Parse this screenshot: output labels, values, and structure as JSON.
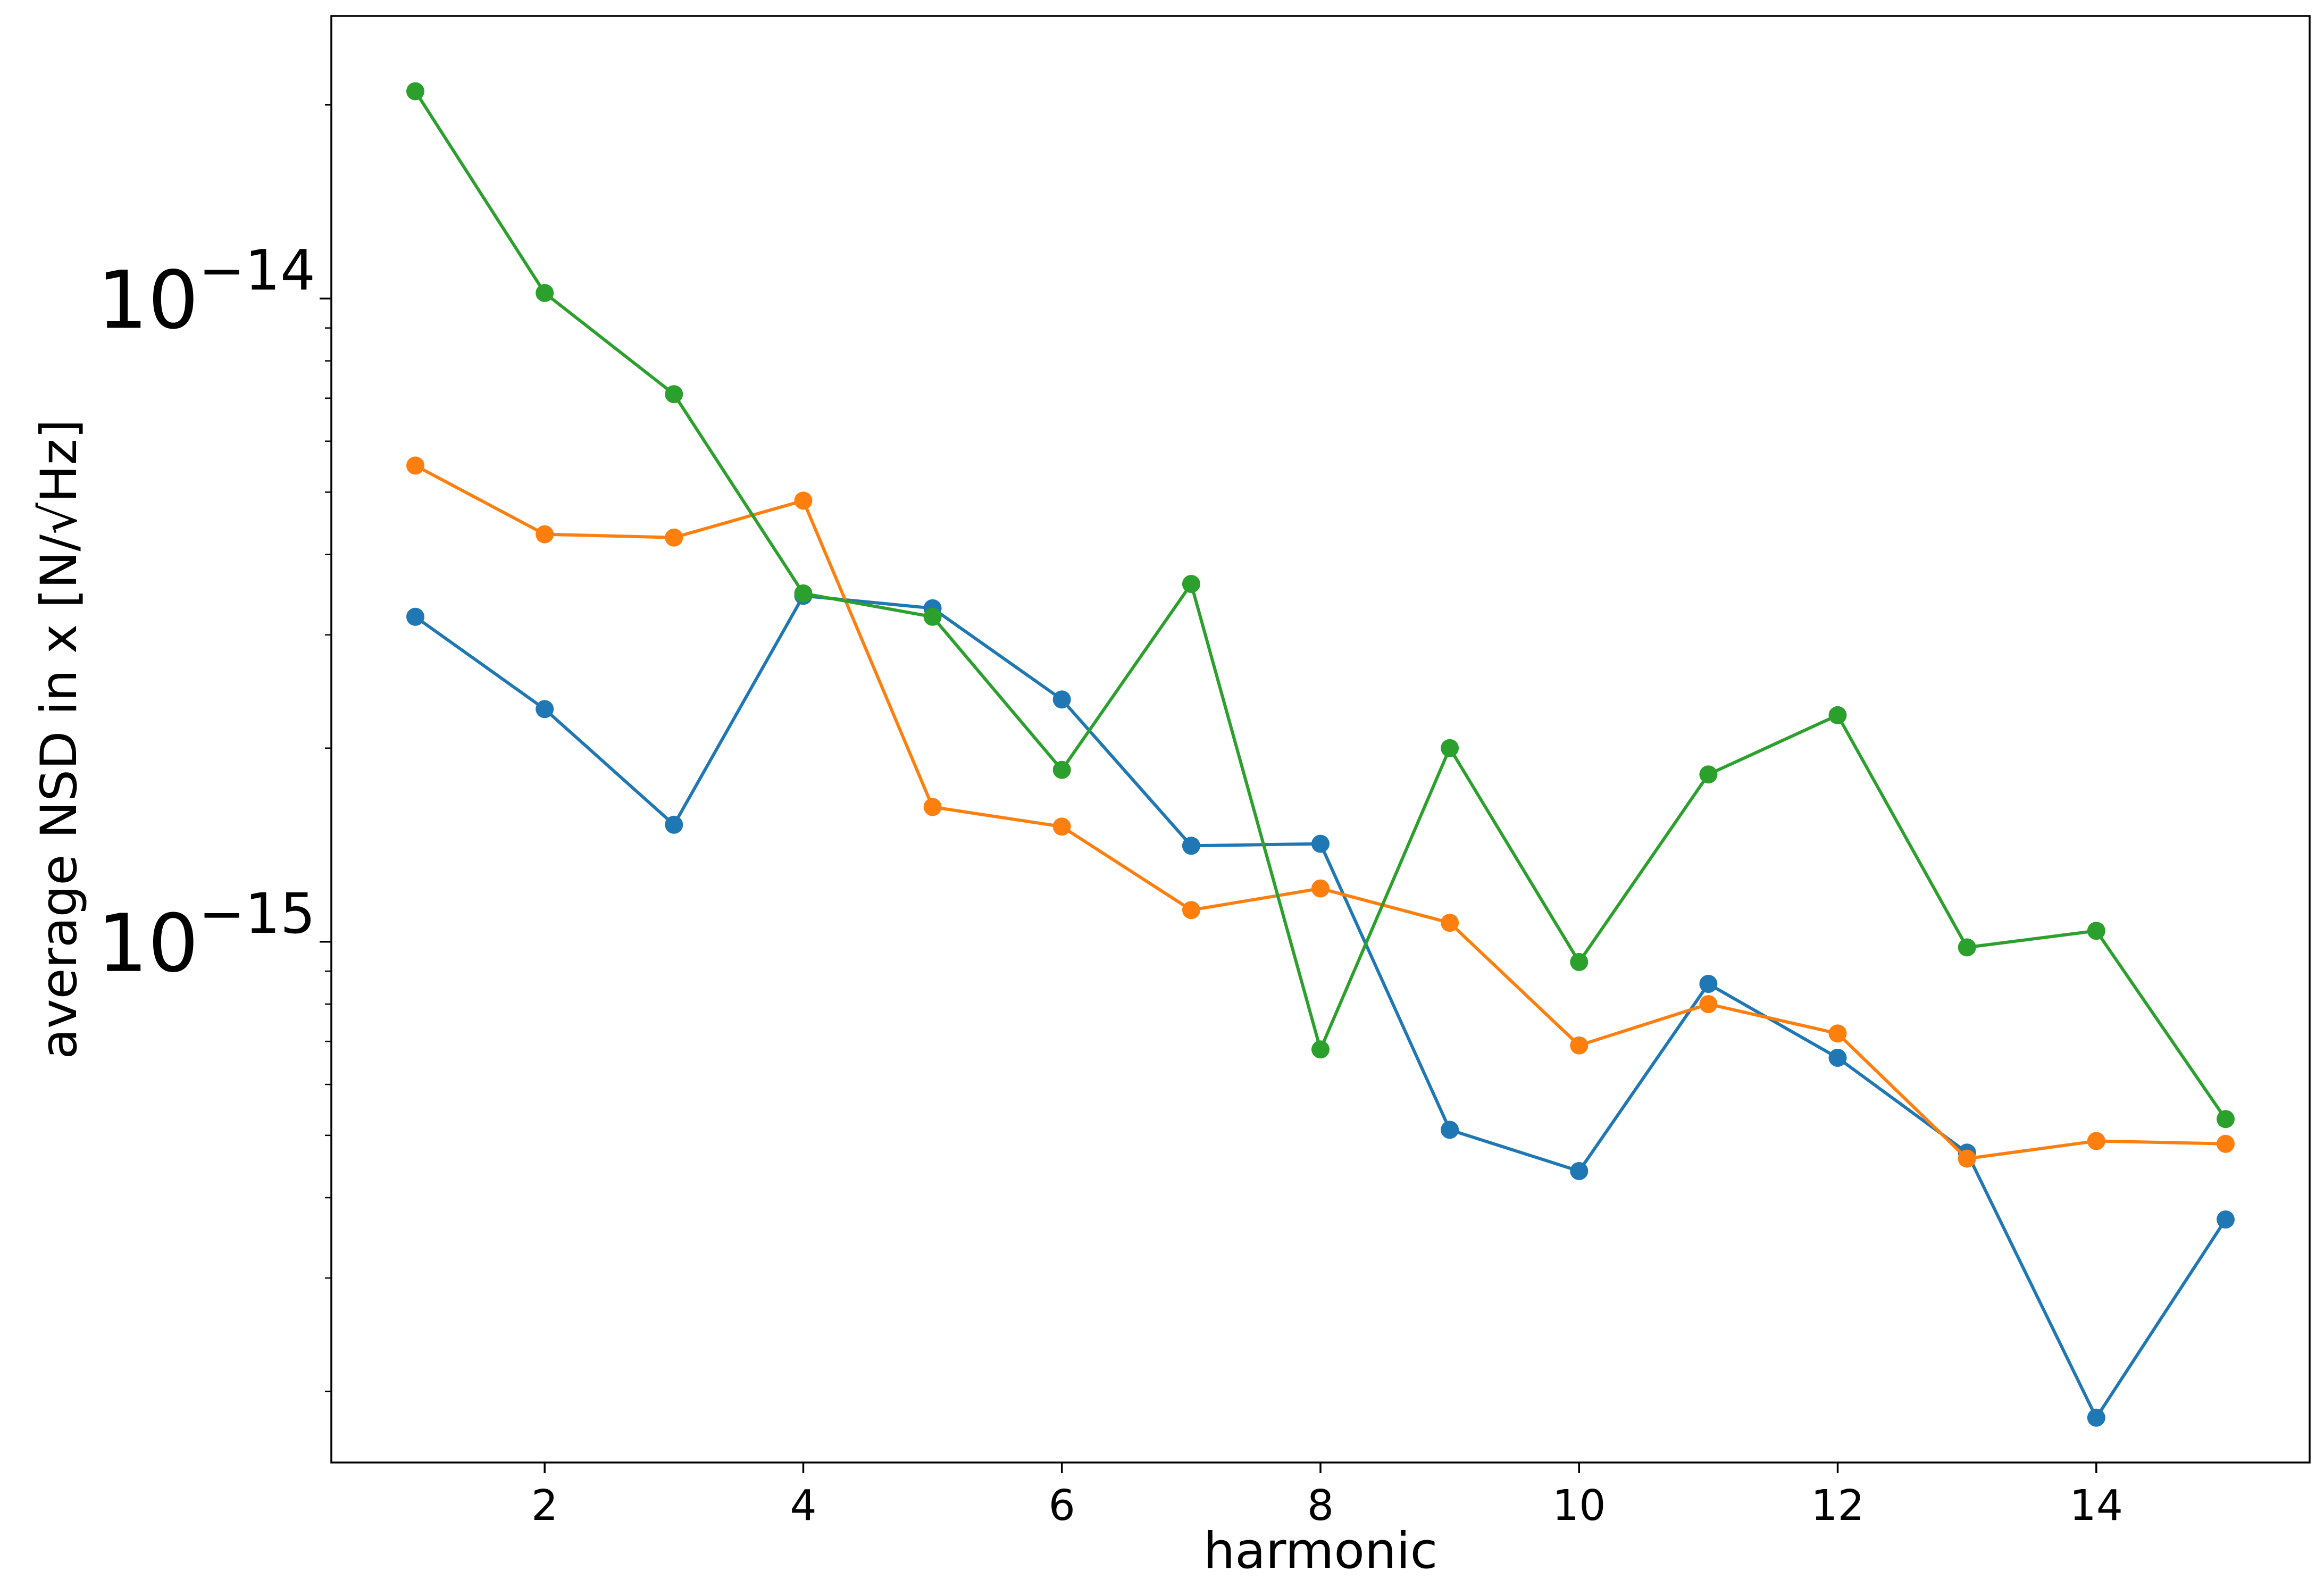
{
  "chart_data": {
    "type": "line",
    "title": "",
    "xlabel": "harmonic",
    "ylabel": "average NSD in x [N/√Hz]",
    "y_scale": "log",
    "xlim": [
      0.35,
      15.65
    ],
    "ylim": [
      1.55e-16,
      2.75e-14
    ],
    "grid": false,
    "legend": "none",
    "x_ticks": [
      2,
      4,
      6,
      8,
      10,
      12,
      14
    ],
    "x_tick_labels": [
      "2",
      "4",
      "6",
      "8",
      "10",
      "12",
      "14"
    ],
    "y_major_ticks": [
      {
        "value": 1e-14,
        "base": "10",
        "exp": "−14"
      },
      {
        "value": 1e-15,
        "base": "10",
        "exp": "−15"
      }
    ],
    "y_minor_ticks": [
      2e-16,
      3e-16,
      4e-16,
      5e-16,
      6e-16,
      7e-16,
      8e-16,
      9e-16,
      2e-15,
      3e-15,
      4e-15,
      5e-15,
      6e-15,
      7e-15,
      8e-15,
      9e-15,
      2e-14
    ],
    "x": [
      1,
      2,
      3,
      4,
      5,
      6,
      7,
      8,
      9,
      10,
      11,
      12,
      13,
      14,
      15
    ],
    "series": [
      {
        "color": "#1f77b4",
        "values": [
          3.2e-15,
          2.3e-15,
          1.52e-15,
          3.45e-15,
          3.3e-15,
          2.38e-15,
          1.41e-15,
          1.42e-15,
          5.1e-16,
          4.4e-16,
          8.6e-16,
          6.6e-16,
          4.7e-16,
          1.82e-16,
          3.7e-16
        ]
      },
      {
        "color": "#ff7f0e",
        "values": [
          5.5e-15,
          4.3e-15,
          4.25e-15,
          4.85e-15,
          1.62e-15,
          1.51e-15,
          1.12e-15,
          1.21e-15,
          1.07e-15,
          6.9e-16,
          8e-16,
          7.2e-16,
          4.6e-16,
          4.9e-16,
          4.85e-16
        ]
      },
      {
        "color": "#2ca02c",
        "values": [
          2.1e-14,
          1.02e-14,
          7.1e-15,
          3.48e-15,
          3.2e-15,
          1.85e-15,
          3.6e-15,
          6.8e-16,
          2e-15,
          9.3e-16,
          1.82e-15,
          2.25e-15,
          9.8e-16,
          1.04e-15,
          5.3e-16
        ]
      }
    ]
  }
}
